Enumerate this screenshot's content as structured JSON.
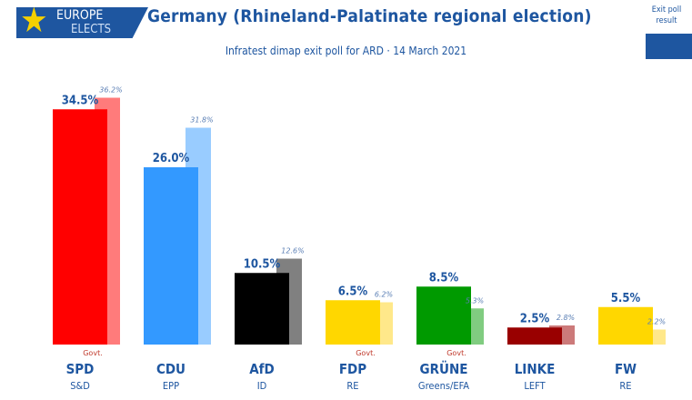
{
  "header": {
    "logo_line1": "EUROPE",
    "logo_line2": "ELECTS",
    "title": "Germany (Rhineland-Palatinate regional election)",
    "subtitle": "Infratest dimap exit poll for ARD · 14 March 2021"
  },
  "legend": {
    "line1": "Exit poll",
    "line2": "result",
    "color": "#1e56a0"
  },
  "chart_data": {
    "type": "bar",
    "categories": [
      "SPD",
      "CDU",
      "AfD",
      "FDP",
      "GRÜNE",
      "LINKE",
      "FW"
    ],
    "groups": [
      "S&D",
      "EPP",
      "ID",
      "RE",
      "Greens/EFA",
      "LEFT",
      "RE"
    ],
    "govt": [
      true,
      false,
      false,
      true,
      true,
      false,
      false
    ],
    "govt_label": "Govt.",
    "series": [
      {
        "values": [
          34.5,
          26.0,
          10.5,
          6.5,
          8.5,
          2.5,
          5.5
        ],
        "labels": [
          "34.5%",
          "26.0%",
          "10.5%",
          "6.5%",
          "8.5%",
          "2.5%",
          "5.5%"
        ]
      },
      {
        "values": [
          36.2,
          31.8,
          12.6,
          6.2,
          5.3,
          2.8,
          2.2
        ],
        "labels": [
          "36.2%",
          "31.8%",
          "12.6%",
          "6.2%",
          "5.3%",
          "2.8%",
          "2.2%"
        ]
      }
    ],
    "colors": [
      "#ff0000",
      "#3399ff",
      "#000000",
      "#ffd700",
      "#009a00",
      "#990000",
      "#ffd700"
    ],
    "prev_colors": [
      "#ff7b7b",
      "#99ccff",
      "#808080",
      "#ffe88a",
      "#80cc80",
      "#cc7a7a",
      "#ffe88a"
    ],
    "ylim": [
      0,
      40
    ]
  }
}
